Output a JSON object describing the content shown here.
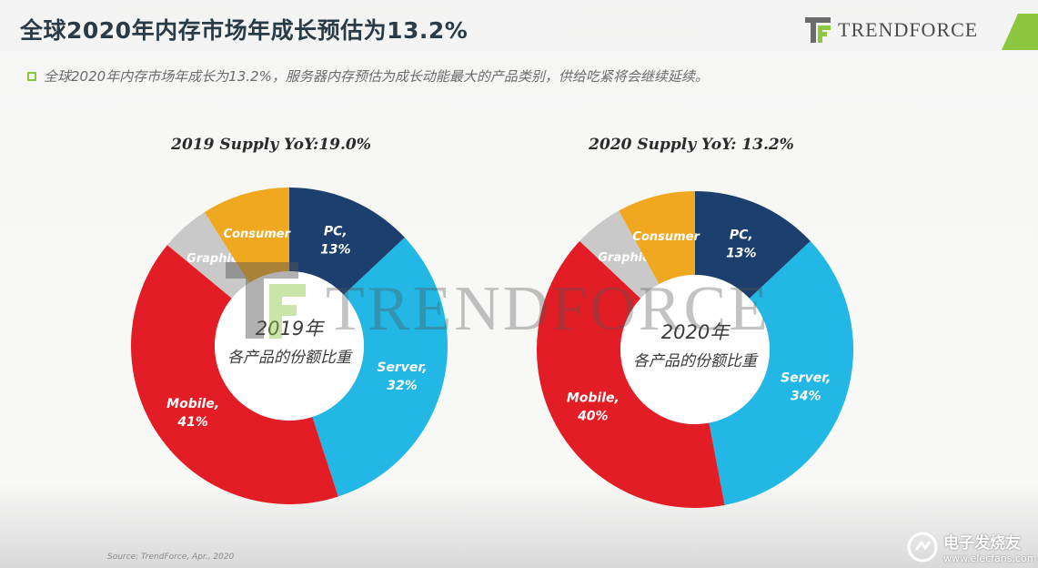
{
  "header": {
    "title": "全球2020年内存市场年成长预估为13.2%",
    "subtitle": "全球2020年内存市场年成长为13.2%，服务器内存预估为成长动能最大的产品类别，供给吃紧将会继续延续。",
    "logo_text": "TRENDFORCE"
  },
  "watermark": {
    "text": "TRENDFORCE"
  },
  "footer": {
    "source": "Source: TrendForce, Apr., 2020",
    "brand_cn": "电子发烧友",
    "brand_url": "www.elecfans.com"
  },
  "colors": {
    "pc": "#1d3f6e",
    "server": "#22b7e5",
    "mobile": "#e31d25",
    "graphic": "#c9c9c9",
    "consumer": "#f0a820",
    "accent": "#8dc63f"
  },
  "chart_data": [
    {
      "type": "pie",
      "title": "2019 Supply YoY:19.0%",
      "center_year": "2019年",
      "center_label": "各产品的份额比重",
      "slices": [
        {
          "label": "PC,",
          "pct_label": "13%",
          "value": 13,
          "color_key": "pc"
        },
        {
          "label": "Server,",
          "pct_label": "32%",
          "value": 32,
          "color_key": "server"
        },
        {
          "label": "Mobile,",
          "pct_label": "41%",
          "value": 41,
          "color_key": "mobile"
        },
        {
          "label": "Graphic",
          "pct_label": "",
          "value": 5,
          "color_key": "graphic"
        },
        {
          "label": "Consumer",
          "pct_label": "",
          "value": 9,
          "color_key": "consumer"
        }
      ]
    },
    {
      "type": "pie",
      "title": "2020 Supply YoY: 13.2%",
      "center_year": "2020年",
      "center_label": "各产品的份额比重",
      "slices": [
        {
          "label": "PC,",
          "pct_label": "13%",
          "value": 13,
          "color_key": "pc"
        },
        {
          "label": "Server,",
          "pct_label": "34%",
          "value": 34,
          "color_key": "server"
        },
        {
          "label": "Mobile,",
          "pct_label": "40%",
          "value": 40,
          "color_key": "mobile"
        },
        {
          "label": "Graphic",
          "pct_label": "",
          "value": 5,
          "color_key": "graphic"
        },
        {
          "label": "Consumer",
          "pct_label": "",
          "value": 8,
          "color_key": "consumer"
        }
      ]
    }
  ]
}
